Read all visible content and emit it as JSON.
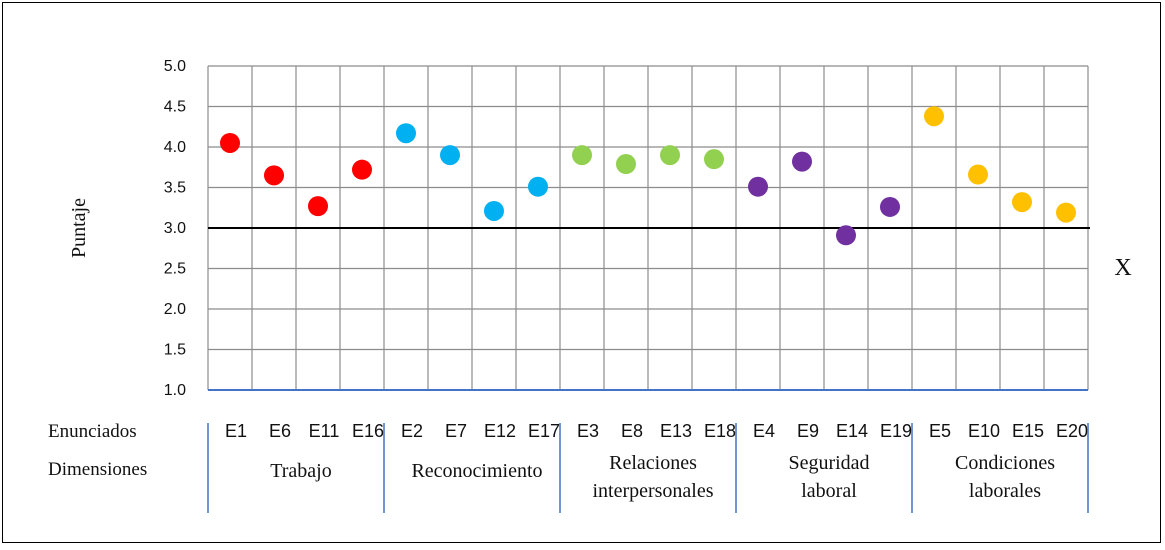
{
  "chart_data": {
    "type": "scatter",
    "ylabel": "Puntaje",
    "ylim": [
      1.0,
      5.0
    ],
    "yticks": [
      "1.0",
      "1.5",
      "2.0",
      "2.5",
      "3.0",
      "3.5",
      "4.0",
      "4.5",
      "5.0"
    ],
    "reference_line": 3.0,
    "reference_label": "X",
    "grid": true,
    "row_labels": {
      "enunciados": "Enunciados",
      "dimensiones": "Dimensiones"
    },
    "categories": [
      "E1",
      "E6",
      "E11",
      "E16",
      "E2",
      "E7",
      "E12",
      "E17",
      "E3",
      "E8",
      "E13",
      "E18",
      "E4",
      "E9",
      "E14",
      "E19",
      "E5",
      "E10",
      "E15",
      "E20"
    ],
    "groups": [
      {
        "name_lines": [
          "Trabajo"
        ],
        "color": "#ff0000",
        "items": [
          "E1",
          "E6",
          "E11",
          "E16"
        ],
        "values": [
          4.05,
          3.65,
          3.27,
          3.72
        ]
      },
      {
        "name_lines": [
          "Reconocimiento"
        ],
        "color": "#00b0f0",
        "items": [
          "E2",
          "E7",
          "E12",
          "E17"
        ],
        "values": [
          4.17,
          3.9,
          3.21,
          3.51
        ]
      },
      {
        "name_lines": [
          "Relaciones",
          "interpersonales"
        ],
        "color": "#92d050",
        "items": [
          "E3",
          "E8",
          "E13",
          "E18"
        ],
        "values": [
          3.9,
          3.79,
          3.9,
          3.85
        ]
      },
      {
        "name_lines": [
          "Seguridad",
          "laboral"
        ],
        "color": "#7030a0",
        "items": [
          "E4",
          "E9",
          "E14",
          "E19"
        ],
        "values": [
          3.51,
          3.82,
          2.91,
          3.26
        ]
      },
      {
        "name_lines": [
          "Condiciones",
          "laborales"
        ],
        "color": "#ffc000",
        "items": [
          "E5",
          "E10",
          "E15",
          "E20"
        ],
        "values": [
          4.38,
          3.66,
          3.32,
          3.19
        ]
      }
    ]
  }
}
